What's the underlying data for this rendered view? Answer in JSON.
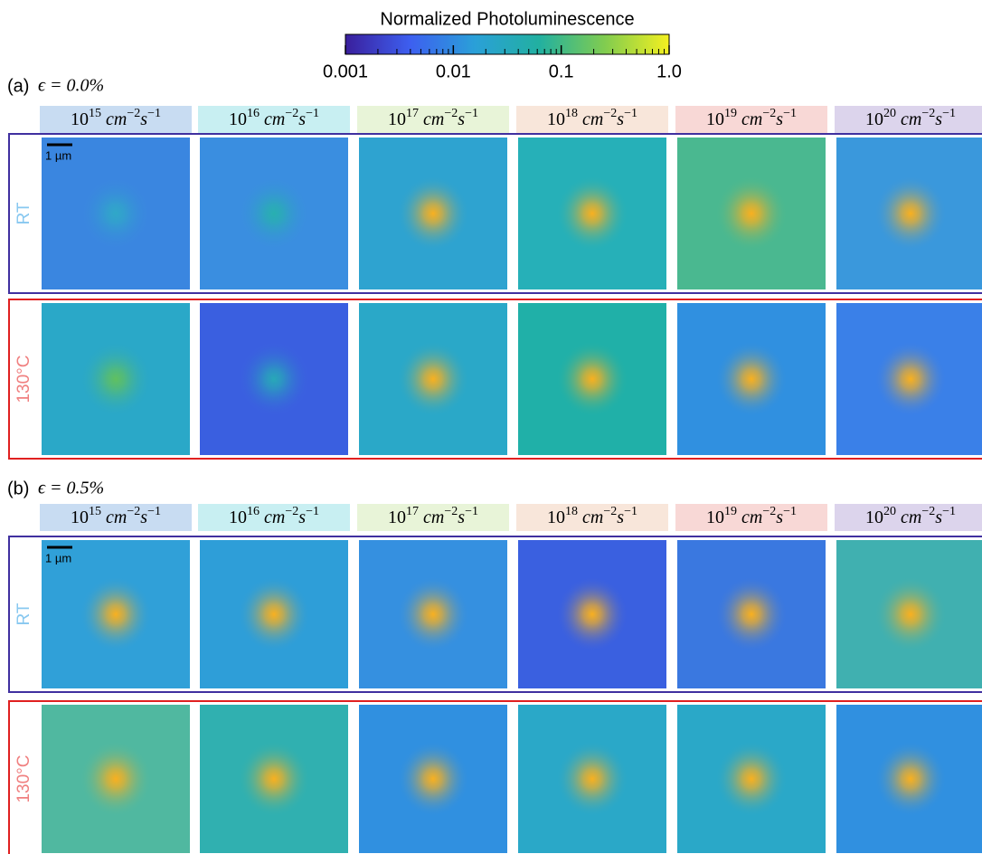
{
  "colorbar": {
    "title": "Normalized  Photoluminescence",
    "lim": [
      0.001,
      1
    ],
    "log": true,
    "ticks": [
      0.001,
      0.01,
      0.1,
      {
        "value": 1,
        "label": "1.0"
      }
    ],
    "colors": [
      "#3a1f9c",
      "#3d5ff0",
      "#2aa0d8",
      "#22b0a0",
      "#80cc50",
      "#f4f020"
    ]
  },
  "units": {
    "base": "10",
    "cm": "cm",
    "cm_exp": "−2",
    "s": "s",
    "s_exp": "−1"
  },
  "scale_bar": "1 µm",
  "sections": [
    {
      "label": "(a)",
      "strain": "ϵ = 0.0%",
      "columns": [
        {
          "exp": "15",
          "color": "#c8dcf2"
        },
        {
          "exp": "16",
          "color": "#c8eff2"
        },
        {
          "exp": "17",
          "color": "#e8f4d8"
        },
        {
          "exp": "18",
          "color": "#f8e6da"
        },
        {
          "exp": "19",
          "color": "#f8d8d6"
        },
        {
          "exp": "20",
          "color": "#dcd4ec"
        }
      ],
      "rows": [
        {
          "label": "RT",
          "text_color": "#88c8f0",
          "border": "#4030a0",
          "cells": [
            {
              "bg": "#3a86e0",
              "spot": "#30a8c8"
            },
            {
              "bg": "#3a8ee0",
              "spot": "#28b0b0"
            },
            {
              "bg": "#2ea3d0",
              "spot": "#f8b020"
            },
            {
              "bg": "#26b0b8",
              "spot": "#f8b020"
            },
            {
              "bg": "#4ab890",
              "spot": "#f8b020"
            },
            {
              "bg": "#3a98dc",
              "spot": "#f8b020"
            }
          ]
        },
        {
          "label": "130°C",
          "text_color": "#f08080",
          "border": "#e02020",
          "cells": [
            {
              "bg": "#2aa8c8",
              "spot": "#60c060"
            },
            {
              "bg": "#3a5fe0",
              "spot": "#28a8b8"
            },
            {
              "bg": "#2aa8c8",
              "spot": "#f8b020"
            },
            {
              "bg": "#20b0a8",
              "spot": "#f8b020"
            },
            {
              "bg": "#3090e0",
              "spot": "#f8b020"
            },
            {
              "bg": "#3a80e8",
              "spot": "#f8b020"
            }
          ]
        }
      ]
    },
    {
      "label": "(b)",
      "strain": "ϵ = 0.5%",
      "columns": [
        {
          "exp": "15",
          "color": "#c8dcf2"
        },
        {
          "exp": "16",
          "color": "#c8eff2"
        },
        {
          "exp": "17",
          "color": "#e8f4d8"
        },
        {
          "exp": "18",
          "color": "#f8e6da"
        },
        {
          "exp": "19",
          "color": "#f8d8d6"
        },
        {
          "exp": "20",
          "color": "#dcd4ec"
        }
      ],
      "rows": [
        {
          "label": "RT",
          "text_color": "#88c8f0",
          "border": "#4030a0",
          "cells": [
            {
              "bg": "#30a0d8",
              "spot": "#f8b020"
            },
            {
              "bg": "#2e9ed8",
              "spot": "#f8b020"
            },
            {
              "bg": "#3590e0",
              "spot": "#f8b020"
            },
            {
              "bg": "#3a60e0",
              "spot": "#f8b020"
            },
            {
              "bg": "#3a78e0",
              "spot": "#f8b020"
            },
            {
              "bg": "#40b0b0",
              "spot": "#f8b020"
            }
          ]
        },
        {
          "label": "130°C",
          "text_color": "#f08080",
          "border": "#e02020",
          "cells": [
            {
              "bg": "#50b8a0",
              "spot": "#f8b020"
            },
            {
              "bg": "#30b0b0",
              "spot": "#f8b020"
            },
            {
              "bg": "#3090e0",
              "spot": "#f8b020"
            },
            {
              "bg": "#2aa8c8",
              "spot": "#f8b020"
            },
            {
              "bg": "#2aa8c8",
              "spot": "#f8b020"
            },
            {
              "bg": "#3090e0",
              "spot": "#f8b020"
            }
          ]
        }
      ]
    }
  ]
}
